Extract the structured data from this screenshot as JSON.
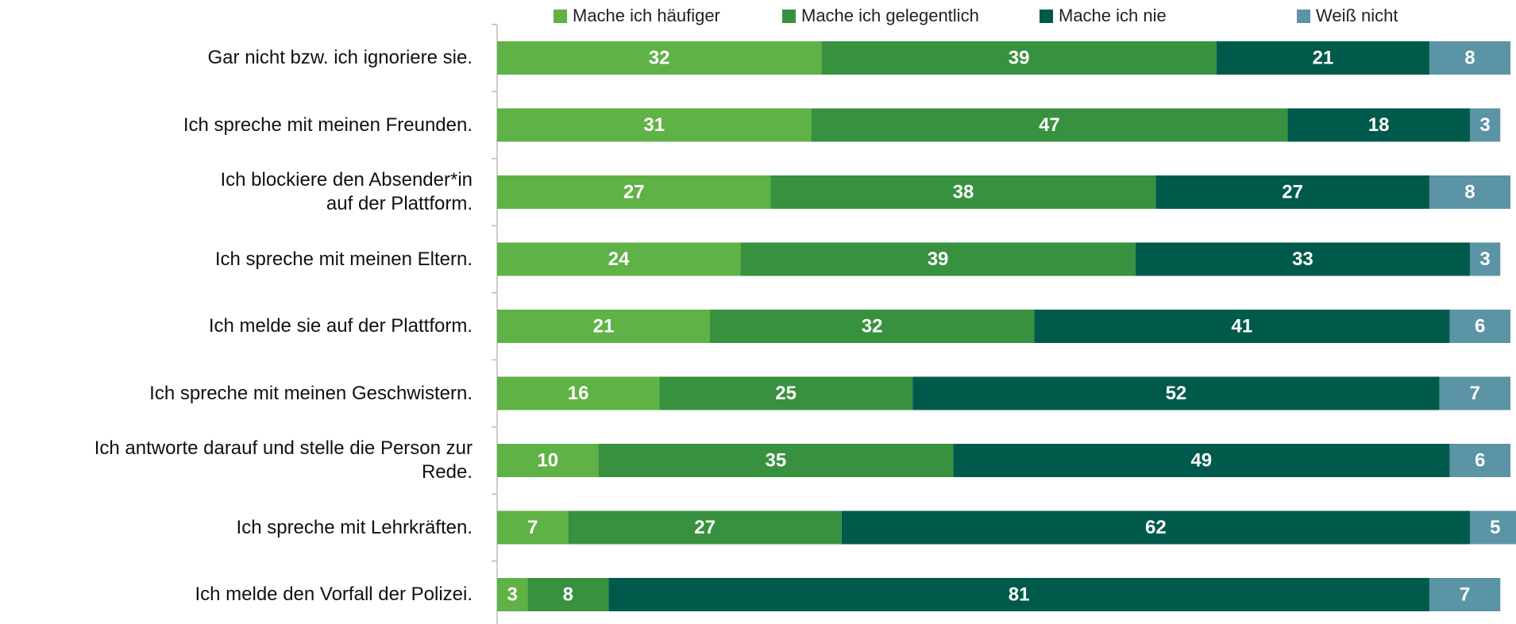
{
  "chart_data": {
    "type": "stacked_barh",
    "categories": [
      "Gar nicht bzw. ich ignoriere sie.",
      "Ich spreche mit meinen Freunden.",
      "Ich blockiere den Absender*in\nauf der Plattform.",
      "Ich spreche mit meinen Eltern.",
      "Ich melde sie auf der Plattform.",
      "Ich spreche mit meinen Geschwistern.",
      "Ich antworte darauf und stelle die Person zur\nRede.",
      "Ich spreche mit Lehrkräften.",
      "Ich melde den Vorfall der Polizei."
    ],
    "series": [
      {
        "name": "Mache ich häufiger",
        "color": "#5fb246",
        "values": [
          32,
          31,
          27,
          24,
          21,
          16,
          10,
          7,
          3
        ]
      },
      {
        "name": "Mache ich gelegentlich",
        "color": "#37913f",
        "values": [
          39,
          47,
          38,
          39,
          32,
          25,
          35,
          27,
          8
        ]
      },
      {
        "name": "Mache ich nie",
        "color": "#005a4b",
        "values": [
          21,
          18,
          27,
          33,
          41,
          52,
          49,
          62,
          81
        ]
      },
      {
        "name": "Weiß nicht",
        "color": "#5b94a5",
        "values": [
          8,
          3,
          8,
          3,
          6,
          7,
          6,
          5,
          7
        ]
      }
    ],
    "xlim": [
      0,
      100
    ],
    "legend": "top"
  }
}
